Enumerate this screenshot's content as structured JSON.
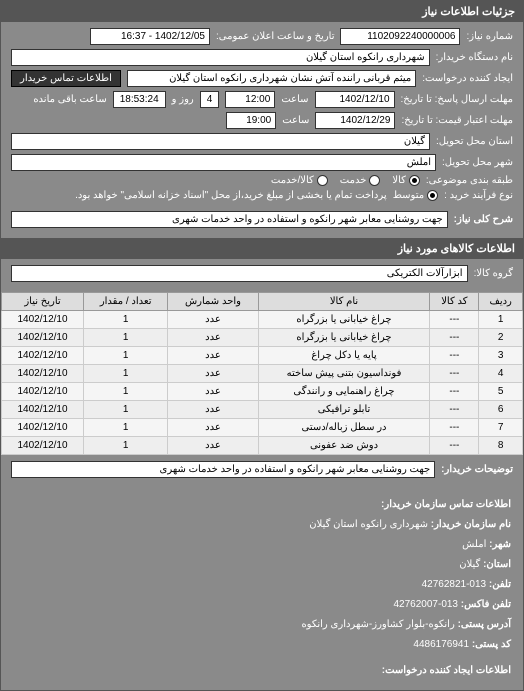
{
  "header": {
    "title": "جزئیات اطلاعات نیاز"
  },
  "form": {
    "request_no_label": "شماره نیاز:",
    "request_no": "1102092240000006",
    "public_datetime_label": "تاریخ و ساعت اعلان عمومی:",
    "public_datetime": "1402/12/05 - 16:37",
    "buyer_org_label": "نام دستگاه خریدار:",
    "buyer_org": "شهرداری رانکوه استان گیلان",
    "requester_label": "ایجاد کننده درخواست:",
    "requester": "میثم قربانی راننده آتش نشان شهرداری رانکوه استان گیلان",
    "contact_btn": "اطلاعات تماس خریدار",
    "deadline_label": "مهلت ارسال پاسخ: تا تاریخ:",
    "deadline_date": "1402/12/10",
    "deadline_time_label": "ساعت",
    "deadline_time": "12:00",
    "remain_days": "4",
    "remain_days_label": "روز و",
    "remain_time": "18:53:24",
    "remain_suffix": "ساعت باقی مانده",
    "validity_label": "مهلت اعتبار قیمت: تا تاریخ:",
    "validity_date": "1402/12/29",
    "validity_time": "19:00",
    "province_label": "استان محل تحویل:",
    "province": "گیلان",
    "city_label": "شهر محل تحویل:",
    "city": "املش",
    "classification_label": "طبقه بندی موضوعی:",
    "radio_goods": "کالا",
    "radio_service": "خدمت",
    "radio_both": "کالا/خدمت",
    "purchase_type_label": "نوع فرآیند خرید :",
    "radio_medium": "متوسط",
    "purchase_note": "پرداخت تمام یا بخشی از مبلغ خرید،از محل \"اسناد خزانه اسلامی\" خواهد بود.",
    "summary_label": "شرح کلی نیاز:",
    "summary": "جهت روشنایی معابر شهر رانکوه و استفاده در واحد خدمات شهری"
  },
  "goods_header": "اطلاعات کالاهای مورد نیاز",
  "goods_group_label": "گروه کالا:",
  "goods_group": "ابزارآلات الکتریکی",
  "table": {
    "cols": [
      "ردیف",
      "کد کالا",
      "نام کالا",
      "واحد شمارش",
      "تعداد / مقدار",
      "تاریخ نیاز"
    ],
    "rows": [
      [
        "1",
        "---",
        "چراغ خیابانی یا بزرگراه",
        "عدد",
        "1",
        "1402/12/10"
      ],
      [
        "2",
        "---",
        "چراغ خیابانی یا بزرگراه",
        "عدد",
        "1",
        "1402/12/10"
      ],
      [
        "3",
        "---",
        "پایه یا دکل چراغ",
        "عدد",
        "1",
        "1402/12/10"
      ],
      [
        "4",
        "---",
        "فونداسیون بتنی پیش ساخته",
        "عدد",
        "1",
        "1402/12/10"
      ],
      [
        "5",
        "---",
        "چراغ راهنمایی و رانندگی",
        "عدد",
        "1",
        "1402/12/10"
      ],
      [
        "6",
        "---",
        "تابلو ترافیکی",
        "عدد",
        "1",
        "1402/12/10"
      ],
      [
        "7",
        "---",
        "در سطل زباله/دستی",
        "عدد",
        "1",
        "1402/12/10"
      ],
      [
        "8",
        "---",
        "دوش ضد عفونی",
        "عدد",
        "1",
        "1402/12/10"
      ]
    ]
  },
  "buyer_notes_label": "توضیحات خریدار:",
  "buyer_notes": "جهت روشنایی معابر شهر رانکوه و استفاده در واحد خدمات شهری",
  "footer": {
    "title": "اطلاعات تماس سازمان خریدار:",
    "org_label": "نام سازمان خریدار:",
    "org": "شهرداری رانکوه استان گیلان",
    "city_label": "شهر:",
    "city": "املش",
    "province_label": "استان:",
    "province": "گیلان",
    "phone_label": "تلفن:",
    "phone": "013-42762821",
    "fax_label": "تلفن فاکس:",
    "fax": "013-42762007",
    "address_label": "آدرس پستی:",
    "address": "رانکوه-بلوار کشاورز-شهرداری رانکوه",
    "postal_label": "کد پستی:",
    "postal": "4486176941",
    "creator_title": "اطلاعات ایجاد کننده درخواست:"
  }
}
